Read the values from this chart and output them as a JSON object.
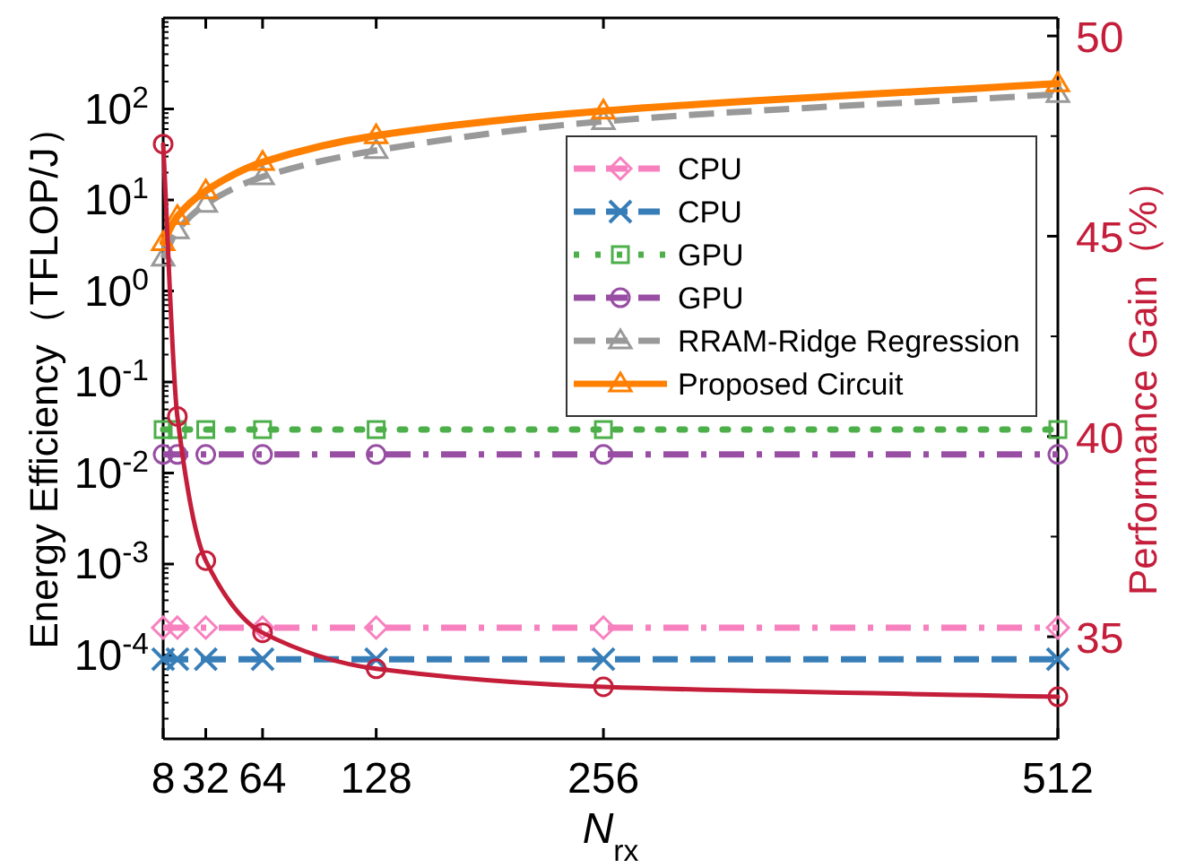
{
  "chart_data": {
    "type": "line",
    "xlabel": "*N*$_{rx}$",
    "ylabel": "Energy Efficiency（TFLOP/J）",
    "y2label": "Performance Gain（%）",
    "x": [
      8,
      16,
      32,
      64,
      128,
      256,
      512
    ],
    "xlim": [
      8,
      512
    ],
    "xticks": [
      8,
      32,
      64,
      128,
      256,
      512
    ],
    "log": "y",
    "ylim": [
      1.2e-05,
      1000
    ],
    "yticks": [
      {
        "value": 0.0001,
        "label": "10$^{-4}$"
      },
      {
        "value": 0.001,
        "label": "10$^{-3}$"
      },
      {
        "value": 0.01,
        "label": "10$^{-2}$"
      },
      {
        "value": 0.1,
        "label": "10$^{-1}$"
      },
      {
        "value": 1,
        "label": "10$^{0}$"
      },
      {
        "value": 10,
        "label": "10$^{1}$"
      },
      {
        "value": 100,
        "label": "10$^{2}$"
      }
    ],
    "y2lim": [
      32.45,
      50.45
    ],
    "y2ticks": [
      35,
      40,
      45,
      50
    ],
    "legend": "top right",
    "grid": false,
    "series": [
      {
        "name": "CPU",
        "color": "#f781bf",
        "marker": "diamond",
        "line_style": "dashdot",
        "values": [
          0.0002,
          0.0002,
          0.0002,
          0.0002,
          0.0002,
          0.0002,
          0.0002
        ]
      },
      {
        "name": "CPU",
        "color": "#377eb8",
        "marker": "cross",
        "line_style": "dashed",
        "values": [
          9e-05,
          9e-05,
          9e-05,
          9e-05,
          9e-05,
          9e-05,
          9e-05
        ]
      },
      {
        "name": "GPU",
        "color": "#4daf4a",
        "marker": "square",
        "line_style": "dotted",
        "values": [
          0.03,
          0.03,
          0.03,
          0.03,
          0.03,
          0.03,
          0.03
        ]
      },
      {
        "name": "GPU",
        "color": "#984ea3",
        "marker": "circle",
        "line_style": "dashdot",
        "values": [
          0.016,
          0.016,
          0.016,
          0.016,
          0.016,
          0.016,
          0.016
        ]
      },
      {
        "name": "RRAM-Ridge Regression",
        "color": "#999999",
        "marker": "triangle",
        "line_style": "dashed",
        "values": [
          2.3,
          4.6,
          9,
          18,
          35,
          73,
          145
        ]
      },
      {
        "name": "Proposed Circuit",
        "color": "#ff7f00",
        "marker": "triangle",
        "line_style": "solid",
        "values": [
          3.4,
          6.6,
          12.6,
          26,
          51,
          95,
          190
        ]
      },
      {
        "color": "#c41e3a",
        "marker": "circle",
        "line_style": "solid",
        "axis": "y2",
        "values": [
          47.3,
          40.5,
          36.9,
          35.1,
          34.2,
          33.75,
          33.5
        ]
      }
    ]
  }
}
